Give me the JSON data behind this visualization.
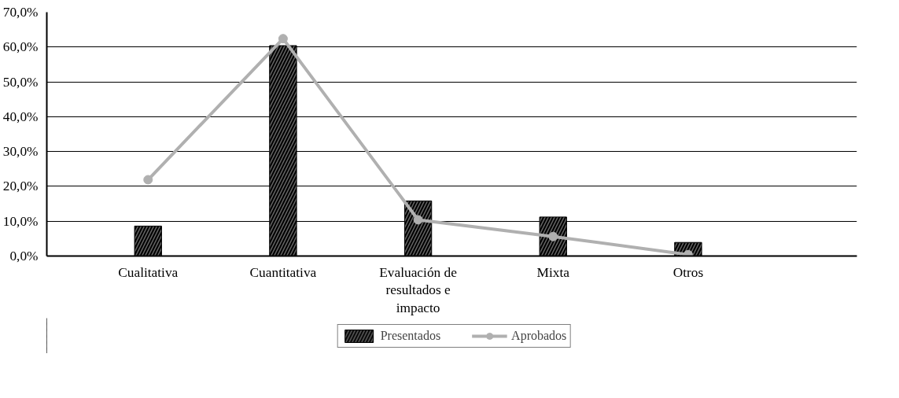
{
  "chart_data": {
    "type": "bar",
    "categories": [
      "Cualitativa",
      "Cuantitativa",
      "Evaluación de\nresultados e\nimpacto",
      "Mixta",
      "Otros"
    ],
    "series": [
      {
        "name": "Presentados",
        "color": "#000000",
        "values": [
          8.6,
          60.4,
          15.8,
          11.2,
          3.9
        ]
      },
      {
        "name": "Aprobados",
        "type": "line",
        "color": "#b0b0b0",
        "marker": "circle",
        "values": [
          21.9,
          62.4,
          10.4,
          5.6,
          0.4
        ]
      }
    ],
    "ylim": [
      0,
      70
    ],
    "yticks": [
      {
        "value": 0,
        "label": "0,0%"
      },
      {
        "value": 10,
        "label": "10,0%"
      },
      {
        "value": 20,
        "label": "20,0%"
      },
      {
        "value": 30,
        "label": "30,0%"
      },
      {
        "value": 40,
        "label": "40,0%"
      },
      {
        "value": 50,
        "label": "50,0%"
      },
      {
        "value": 60,
        "label": "60,0%"
      },
      {
        "value": 70,
        "label": "70,0%"
      }
    ],
    "grid": "y",
    "legend": "bottom"
  }
}
